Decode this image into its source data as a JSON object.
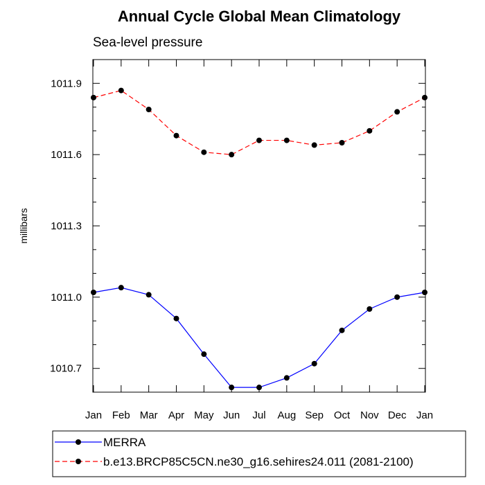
{
  "chart_data": {
    "type": "line",
    "title": "Annual Cycle Global Mean Climatology",
    "subtitle": "Sea-level pressure",
    "ylabel": "millibars",
    "xlabel": "",
    "categories": [
      "Jan",
      "Feb",
      "Mar",
      "Apr",
      "May",
      "Jun",
      "Jul",
      "Aug",
      "Sep",
      "Oct",
      "Nov",
      "Dec",
      "Jan"
    ],
    "yticks": [
      "1010.7",
      "1011.0",
      "1011.3",
      "1011.6",
      "1011.9"
    ],
    "ylim": [
      1010.6,
      1012.0
    ],
    "legend_position": "bottom",
    "grid": false,
    "series": [
      {
        "name": "MERRA",
        "color": "#0000ff",
        "line_style": "solid",
        "marker": "filled-circle",
        "values": [
          1011.02,
          1011.04,
          1011.01,
          1010.91,
          1010.76,
          1010.62,
          1010.62,
          1010.66,
          1010.72,
          1010.86,
          1010.95,
          1011.0,
          1011.02
        ]
      },
      {
        "name": "b.e13.BRCP85C5CN.ne30_g16.sehires24.011 (2081-2100)",
        "color": "#ff0000",
        "line_style": "dashed",
        "marker": "filled-circle",
        "values": [
          1011.84,
          1011.87,
          1011.79,
          1011.68,
          1011.61,
          1011.6,
          1011.66,
          1011.66,
          1011.64,
          1011.65,
          1011.7,
          1011.78,
          1011.84
        ]
      }
    ]
  }
}
